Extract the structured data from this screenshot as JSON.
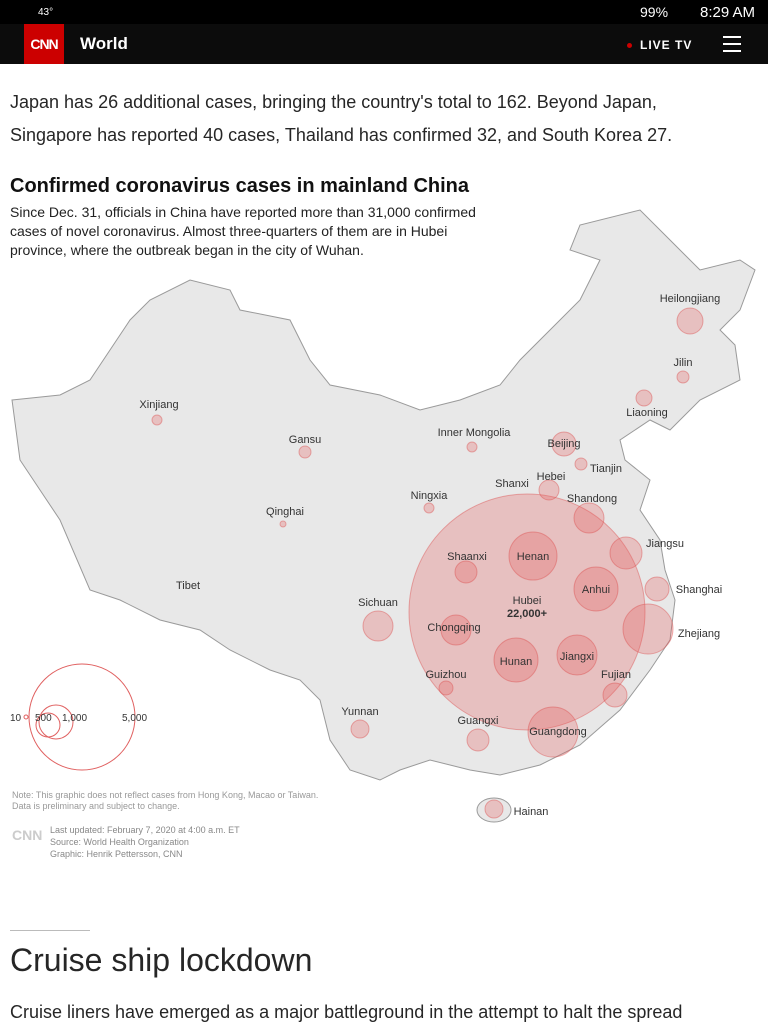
{
  "status_bar": {
    "temperature": "43°",
    "battery": "99%",
    "time": "8:29 AM"
  },
  "nav": {
    "logo": "CNN",
    "section": "World",
    "live": "LIVE TV"
  },
  "article": {
    "paragraph_1": [
      "Japan has 26 additional cases, bringing the country's total to 162. Beyond Japan,",
      "Singapore has reported 40 cases, Thailand has confirmed 32, and South Korea 27."
    ],
    "heading": "Cruise ship lockdown",
    "paragraph_2": "Cruise liners have emerged as a major battleground in the attempt to halt the spread"
  },
  "graphic": {
    "title": "Confirmed coronavirus cases in mainland China",
    "subtitle": [
      "Since Dec. 31, officials in China have reported more than 31,000 confirmed",
      "cases of novel coronavirus. Almost three-quarters of them are in Hubei",
      "province, where the outbreak began in the city of Wuhan."
    ],
    "labels": [
      "Heilongjiang",
      "Jilin",
      "Liaoning",
      "Xinjiang",
      "Gansu",
      "Inner Mongolia",
      "Beijing",
      "Tianjin",
      "Hebei",
      "Shanxi",
      "Shandong",
      "Ningxia",
      "Qinghai",
      "Jiangsu",
      "Shaanxi",
      "Henan",
      "Tibet",
      "Anhui",
      "Shanghai",
      "Sichuan",
      "Hubei",
      "Chongqing",
      "Zhejiang",
      "Hunan",
      "Jiangxi",
      "Fujian",
      "Guizhou",
      "Yunnan",
      "Guangxi",
      "Guangdong",
      "Hainan"
    ],
    "hubei_value": "22,000+",
    "legend": [
      "10",
      "500",
      "1,000",
      "5,000"
    ],
    "note": [
      "Note: This graphic does not reflect cases from Hong Kong, Macao or Taiwan.",
      "Data is preliminary and subject to change."
    ],
    "credits_logo": "CNN",
    "credits": [
      "Last updated: February 7, 2020 at 4:00 a.m. ET",
      "Source: World Health Organization",
      "Graphic: Henrik Pettersson, CNN"
    ]
  }
}
